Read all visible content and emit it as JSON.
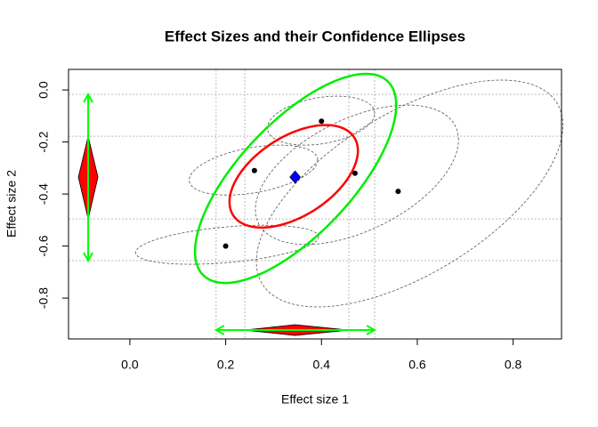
{
  "chart_data": {
    "type": "scatter",
    "title": "Effect Sizes and their Confidence Ellipses",
    "xlabel": "Effect size 1",
    "ylabel": "Effect size 2",
    "xlim": [
      -0.128,
      0.901
    ],
    "ylim": [
      -0.957,
      0.079
    ],
    "xticks": [
      {
        "value": 0,
        "label": "0.0"
      },
      {
        "value": 0.2,
        "label": "0.2"
      },
      {
        "value": 0.4,
        "label": "0.4"
      },
      {
        "value": 0.6,
        "label": "0.6"
      },
      {
        "value": 0.8,
        "label": "0.8"
      }
    ],
    "yticks": [
      {
        "value": 0,
        "label": "0.0"
      },
      {
        "value": -0.2,
        "label": "-0.2"
      },
      {
        "value": -0.4,
        "label": "-0.4"
      },
      {
        "value": -0.6,
        "label": "-0.6"
      },
      {
        "value": -0.8,
        "label": "-0.8"
      }
    ],
    "ref_x": [
      0.18,
      0.24,
      0.457,
      0.511
    ],
    "ref_y": [
      -0.017,
      -0.178,
      -0.496,
      -0.656
    ],
    "x": [
      0.2,
      0.26,
      0.4,
      0.47,
      0.56
    ],
    "y": [
      -0.6,
      -0.31,
      -0.12,
      -0.32,
      -0.39
    ],
    "point_color": "#000000",
    "study_ellipses": {
      "color": "#555555",
      "items": [
        {
          "center": [
            0.203,
            -0.595
          ],
          "half_width": 0.191,
          "half_height": 0.075,
          "r": 0.4
        },
        {
          "center": [
            0.258,
            -0.308
          ],
          "half_width": 0.134,
          "half_height": 0.096,
          "r": 0.4
        },
        {
          "center": [
            0.399,
            -0.118
          ],
          "half_width": 0.112,
          "half_height": 0.094,
          "r": 0.3
        },
        {
          "center": [
            0.474,
            -0.326
          ],
          "half_width": 0.212,
          "half_height": 0.268,
          "r": 0.5
        },
        {
          "center": [
            0.584,
            -0.398
          ],
          "half_width": 0.32,
          "half_height": 0.436,
          "r": 0.6
        }
      ]
    },
    "summary_ellipses": [
      {
        "color": "#ff0000",
        "center": [
          0.342,
          -0.332
        ],
        "half_width": 0.134,
        "half_height": 0.197,
        "r": 0.5
      },
      {
        "color": "#00ee00",
        "center": [
          0.346,
          -0.34
        ],
        "half_width": 0.21,
        "half_height": 0.402,
        "r": 0.7
      }
    ],
    "summary_point": {
      "x": 0.345,
      "y": -0.335,
      "color": "#0000ff"
    },
    "margin_x": {
      "position": -0.923,
      "lower": 0.24,
      "center": 0.345,
      "upper": 0.457,
      "arrow": [
        0.18,
        0.511
      ]
    },
    "margin_y": {
      "position": -0.087,
      "lower": -0.496,
      "center": -0.335,
      "upper": -0.178,
      "arrow": [
        -0.656,
        -0.017
      ]
    },
    "diamond_color": "#ff0000",
    "arrow_color": "#00ff00"
  }
}
